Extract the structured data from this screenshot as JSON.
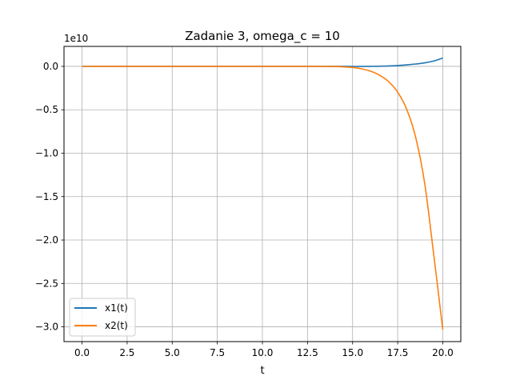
{
  "chart_data": {
    "type": "line",
    "title": "Zadanie 3, omega_c = 10",
    "xlabel": "t",
    "ylabel": "",
    "offset_text": "1e10",
    "y_scale_factor": 10000000000,
    "xlim": [
      -1.0,
      21.0
    ],
    "ylim": [
      -3.17,
      0.23
    ],
    "x_ticks": [
      0.0,
      2.5,
      5.0,
      7.5,
      10.0,
      12.5,
      15.0,
      17.5,
      20.0
    ],
    "x_tick_labels": [
      "0.0",
      "2.5",
      "5.0",
      "7.5",
      "10.0",
      "12.5",
      "15.0",
      "17.5",
      "20.0"
    ],
    "y_ticks": [
      0.0,
      -0.5,
      -1.0,
      -1.5,
      -2.0,
      -2.5,
      -3.0
    ],
    "y_tick_labels": [
      "0.0",
      "−0.5",
      "−1.0",
      "−1.5",
      "−2.0",
      "−2.5",
      "−3.0"
    ],
    "grid": true,
    "legend_position": "lower-left",
    "x": [
      0,
      2,
      4,
      6,
      8,
      10,
      11,
      12,
      13,
      14,
      14.5,
      15,
      15.5,
      16,
      16.5,
      17,
      17.5,
      18,
      18.5,
      19,
      19.5,
      20
    ],
    "series": [
      {
        "name": "x1(t)",
        "color": "#1f77b4",
        "values": [
          0,
          0,
          0,
          0,
          0,
          0,
          0,
          0,
          0,
          -0.0001,
          -0.0002,
          -0.0004,
          -0.0005,
          0.0002,
          0.0018,
          0.0049,
          0.0099,
          0.0172,
          0.0272,
          0.0407,
          0.0616,
          0.096
        ]
      },
      {
        "name": "x2(t)",
        "color": "#ff7f0e",
        "values": [
          0,
          0,
          0,
          0,
          0,
          0,
          0,
          -0.0001,
          -0.0005,
          -0.0023,
          -0.0054,
          -0.0128,
          -0.0281,
          -0.0559,
          -0.1018,
          -0.1763,
          -0.2966,
          -0.494,
          -0.819,
          -1.35,
          -2.17,
          -3.03
        ]
      }
    ]
  }
}
